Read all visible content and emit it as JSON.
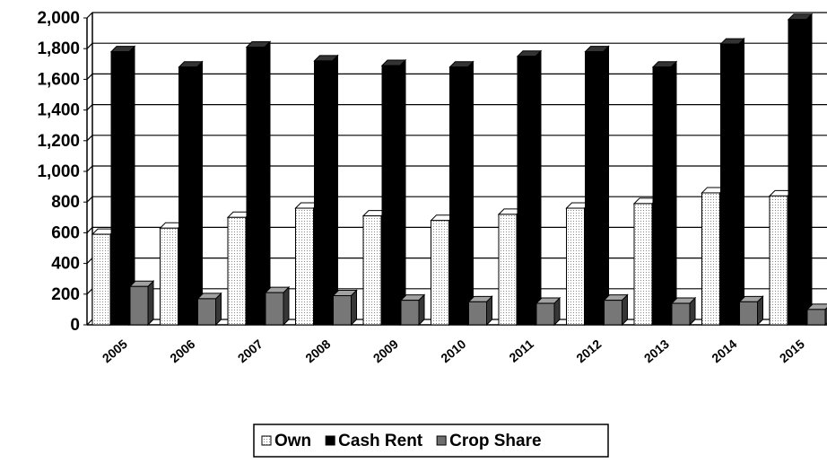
{
  "chart_data": {
    "type": "bar",
    "categories": [
      "2005",
      "2006",
      "2007",
      "2008",
      "2009",
      "2010",
      "2011",
      "2012",
      "2013",
      "2014",
      "2015"
    ],
    "series": [
      {
        "name": "Own",
        "color": "#d9d9d9",
        "values": [
          590,
          630,
          700,
          760,
          710,
          680,
          720,
          760,
          790,
          860,
          840
        ]
      },
      {
        "name": "Cash Rent",
        "color": "#000000",
        "values": [
          1780,
          1680,
          1810,
          1720,
          1690,
          1680,
          1750,
          1780,
          1680,
          1830,
          1990
        ]
      },
      {
        "name": "Crop Share",
        "color": "#6e6e6e",
        "values": [
          250,
          170,
          210,
          190,
          160,
          150,
          140,
          160,
          140,
          150,
          100
        ]
      }
    ],
    "ylim": [
      0,
      2000
    ],
    "yticks": [
      0,
      200,
      400,
      600,
      800,
      {
        "value": 1000,
        "label": "1,000"
      },
      {
        "value": 1200,
        "label": "1,200"
      },
      {
        "value": 1400,
        "label": "1,400"
      },
      {
        "value": 1600,
        "label": "1,600"
      },
      {
        "value": 1800,
        "label": "1,800"
      },
      {
        "value": 2000,
        "label": "2,000"
      }
    ],
    "grid": true
  }
}
